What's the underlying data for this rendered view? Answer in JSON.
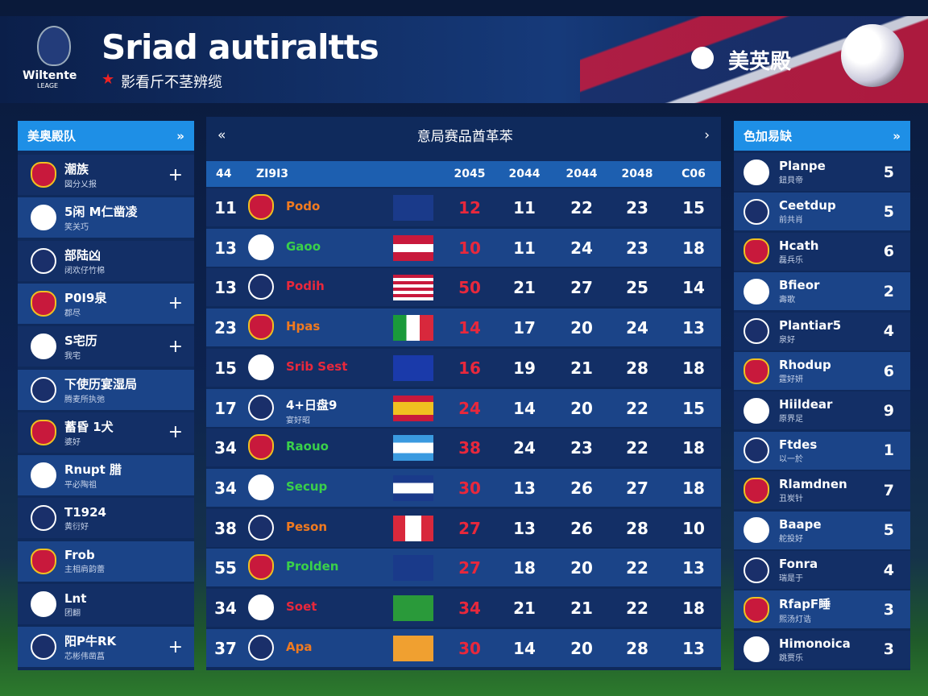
{
  "header": {
    "logo_text": "Wiltente",
    "logo_sub": "LEAGE",
    "title": "Sriad autiraltts",
    "subtitle": "影看斤不茎辨缆",
    "right_label": "美英殿"
  },
  "left_panel": {
    "title": "美奥殿队",
    "items": [
      {
        "name": "潮族",
        "sub": "図分乂报",
        "action": "+"
      },
      {
        "name": "5闲 M仁凿凌",
        "sub": "笑关巧"
      },
      {
        "name": "部陆凶",
        "sub": "闭欢仔竹棉"
      },
      {
        "name": "P0I9泉",
        "sub": "郡尽",
        "action": "+"
      },
      {
        "name": "S宅历",
        "sub": "我宅",
        "action": "+"
      },
      {
        "name": "下使历宴湿局",
        "sub": "腾麦所执弛"
      },
      {
        "name": "蓄昏 1犬",
        "sub": "婆好",
        "action": "+"
      },
      {
        "name": "Rnupt 腊",
        "sub": "平必陶祖"
      },
      {
        "name": "T1924",
        "sub": "黄衍好"
      },
      {
        "name": "Frob",
        "sub": "主相肩韵蕾"
      },
      {
        "name": "Lnt",
        "sub": "团翻"
      },
      {
        "name": "阳P牛RK",
        "sub": "芯彬伟凿菖",
        "action": "+"
      }
    ]
  },
  "table": {
    "title": "意局赛品酋革苯",
    "columns": [
      "44",
      "ZI9I3",
      "2045",
      "2044",
      "2044",
      "2048",
      "C06"
    ],
    "rows": [
      {
        "rank": 11,
        "name": "Podo",
        "values": [
          12,
          11,
          22,
          23,
          15
        ]
      },
      {
        "rank": 13,
        "name": "Gaoo",
        "values": [
          10,
          11,
          24,
          23,
          18
        ]
      },
      {
        "rank": 13,
        "name": "Podih",
        "values": [
          50,
          21,
          27,
          25,
          14
        ]
      },
      {
        "rank": 23,
        "name": "Hpas",
        "values": [
          14,
          17,
          20,
          24,
          13
        ]
      },
      {
        "rank": 15,
        "name": "Srib Sest",
        "values": [
          16,
          19,
          21,
          28,
          18
        ]
      },
      {
        "rank": 17,
        "name": "4+日盘9",
        "sub": "宴好昭",
        "values": [
          24,
          14,
          20,
          22,
          15
        ]
      },
      {
        "rank": 34,
        "name": "Raouo",
        "values": [
          38,
          24,
          23,
          22,
          18
        ]
      },
      {
        "rank": 34,
        "name": "Secup",
        "values": [
          30,
          13,
          26,
          27,
          18
        ]
      },
      {
        "rank": 38,
        "name": "Peson",
        "values": [
          27,
          13,
          26,
          28,
          10
        ]
      },
      {
        "rank": 55,
        "name": "Prolden",
        "values": [
          27,
          18,
          20,
          22,
          13
        ]
      },
      {
        "rank": 34,
        "name": "Soet",
        "values": [
          34,
          21,
          21,
          22,
          18
        ]
      },
      {
        "rank": 37,
        "name": "Apa",
        "values": [
          30,
          14,
          20,
          28,
          13
        ]
      }
    ]
  },
  "right_panel": {
    "title": "色加易缺",
    "items": [
      {
        "name": "Planpe",
        "sub": "鈕貝帝",
        "value": 5
      },
      {
        "name": "Ceetdup",
        "sub": "前共肖",
        "value": 5
      },
      {
        "name": "Hcath",
        "sub": "磊兵乐",
        "value": 6
      },
      {
        "name": "Bfieor",
        "sub": "壽歌",
        "value": 2
      },
      {
        "name": "Plantiar5",
        "sub": "泉好",
        "value": 4
      },
      {
        "name": "Rhodup",
        "sub": "霆好妍",
        "value": 6
      },
      {
        "name": "Hiildear",
        "sub": "原界足",
        "value": 9
      },
      {
        "name": "Ftdes",
        "sub": "以一於",
        "value": 1
      },
      {
        "name": "Rlamdnen",
        "sub": "丑炭针",
        "value": 7
      },
      {
        "name": "Baape",
        "sub": "舵投好",
        "value": 5
      },
      {
        "name": "Fonra",
        "sub": "瑞是于",
        "value": 4
      },
      {
        "name": "RfapF睡",
        "sub": "熙汤灯诰",
        "value": 3
      },
      {
        "name": "Himonoica",
        "sub": "跳贾乐",
        "value": 3
      }
    ]
  }
}
